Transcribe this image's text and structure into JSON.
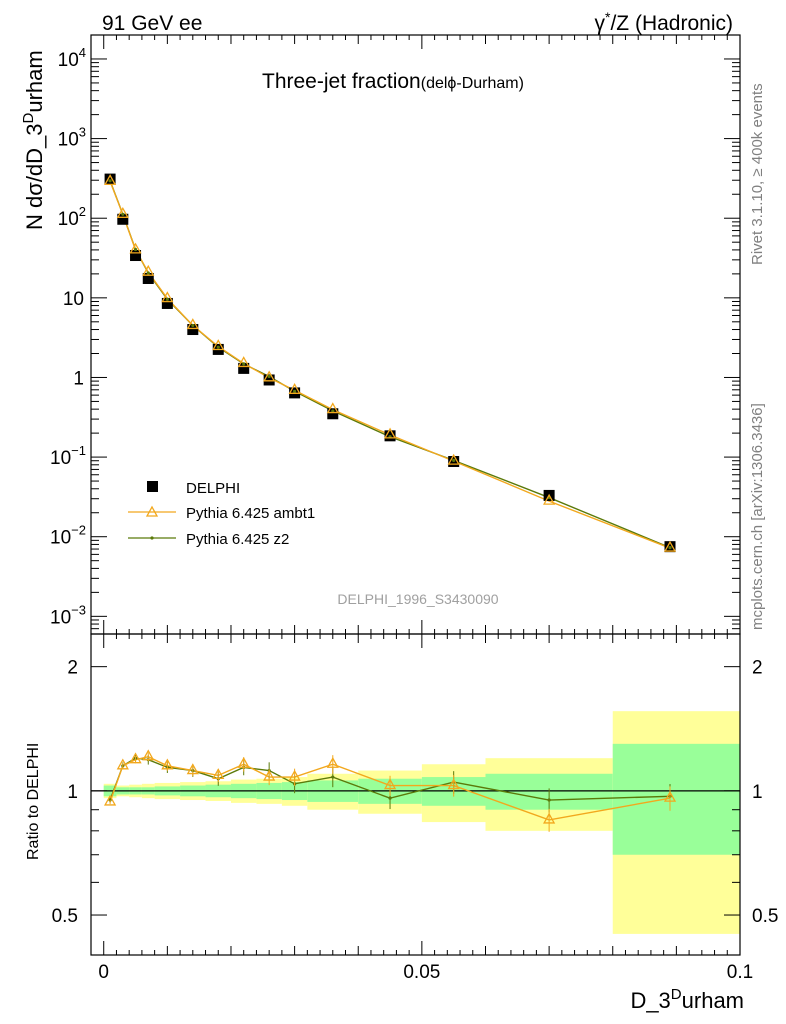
{
  "header": {
    "left": "91 GeV ee",
    "right_base": "γ",
    "right_sup": "*",
    "right_rest": "/Z (Hadronic)"
  },
  "side_text": {
    "rivet": "Rivet 3.1.10, ≥ 400k events",
    "mcplots": "mcplots.cern.ch [arXiv:1306.3436]"
  },
  "main_plot": {
    "title_main": "Three-jet fraction",
    "title_sub_pre": "(del",
    "title_sub_sym": "ϕ",
    "title_sub_post": "-Durham)",
    "ylabel_pre": "N dσ/dD_3",
    "ylabel_sup": "D",
    "ylabel_post": "urham",
    "analysis_id": "DELPHI_1996_S3430090"
  },
  "ratio_plot": {
    "ylabel": "Ratio to DELPHI",
    "tick_labels": [
      "0.5",
      "1",
      "2"
    ]
  },
  "xaxis": {
    "label_pre": "D_3",
    "label_sup": "D",
    "label_post": "urham",
    "tick_labels": [
      "0",
      "0.05",
      "0.1"
    ]
  },
  "legend": {
    "entries": [
      "DELPHI",
      "Pythia 6.425 ambt1",
      "Pythia 6.425 z2"
    ]
  },
  "colors": {
    "data": "#000000",
    "ambt1": "#f2a81d",
    "z2": "#5b7a0a",
    "band_inner": "#99ff99",
    "band_outer": "#ffff99",
    "analysis_id": "#a0a0a0",
    "side_text": "#808080"
  },
  "chart_data": {
    "type": "scatter",
    "x": [
      0.001,
      0.003,
      0.005,
      0.007,
      0.01,
      0.014,
      0.018,
      0.022,
      0.026,
      0.03,
      0.036,
      0.045,
      0.055,
      0.07,
      0.089
    ],
    "x_bins": [
      [
        0.0,
        0.002
      ],
      [
        0.002,
        0.004
      ],
      [
        0.004,
        0.006
      ],
      [
        0.006,
        0.008
      ],
      [
        0.008,
        0.012
      ],
      [
        0.012,
        0.016
      ],
      [
        0.016,
        0.02
      ],
      [
        0.02,
        0.024
      ],
      [
        0.024,
        0.028
      ],
      [
        0.028,
        0.032
      ],
      [
        0.032,
        0.04
      ],
      [
        0.04,
        0.05
      ],
      [
        0.05,
        0.06
      ],
      [
        0.06,
        0.08
      ],
      [
        0.08,
        0.1
      ]
    ],
    "xlim": [
      -0.002,
      0.1
    ],
    "ylim": [
      0.0006,
      20000
    ],
    "yscale": "log",
    "ratio_ylim": [
      0.4,
      2.4
    ],
    "ratio_yscale": "log",
    "series": [
      {
        "name": "DELPHI",
        "values": [
          310,
          97,
          34,
          17.5,
          8.5,
          4.0,
          2.25,
          1.3,
          0.93,
          0.64,
          0.35,
          0.185,
          0.088,
          0.033,
          0.0075
        ],
        "ratio": [
          1,
          1,
          1,
          1,
          1,
          1,
          1,
          1,
          1,
          1,
          1,
          1,
          1,
          1,
          1
        ],
        "band_inner": [
          0.03,
          0.02,
          0.02,
          0.02,
          0.025,
          0.03,
          0.035,
          0.04,
          0.045,
          0.05,
          0.06,
          0.07,
          0.08,
          0.1,
          0.3
        ],
        "band_outer": [
          0.04,
          0.03,
          0.035,
          0.04,
          0.045,
          0.05,
          0.055,
          0.065,
          0.07,
          0.08,
          0.1,
          0.12,
          0.16,
          0.2,
          0.56
        ]
      },
      {
        "name": "Pythia 6.425 ambt1",
        "values": [
          290,
          112,
          40,
          21,
          9.8,
          4.5,
          2.45,
          1.5,
          0.99,
          0.69,
          0.395,
          0.19,
          0.089,
          0.028,
          0.0072
        ],
        "ratio": [
          0.94,
          1.15,
          1.19,
          1.21,
          1.15,
          1.12,
          1.09,
          1.16,
          1.08,
          1.08,
          1.16,
          1.03,
          1.03,
          0.85,
          0.96
        ]
      },
      {
        "name": "Pythia 6.425 z2",
        "values": [
          295,
          112,
          40.5,
          20.5,
          9.6,
          4.5,
          2.4,
          1.48,
          1.03,
          0.67,
          0.38,
          0.18,
          0.091,
          0.031,
          0.0073
        ],
        "ratio": [
          0.95,
          1.15,
          1.2,
          1.19,
          1.14,
          1.12,
          1.07,
          1.14,
          1.12,
          1.04,
          1.08,
          0.96,
          1.05,
          0.95,
          0.97
        ]
      }
    ]
  }
}
